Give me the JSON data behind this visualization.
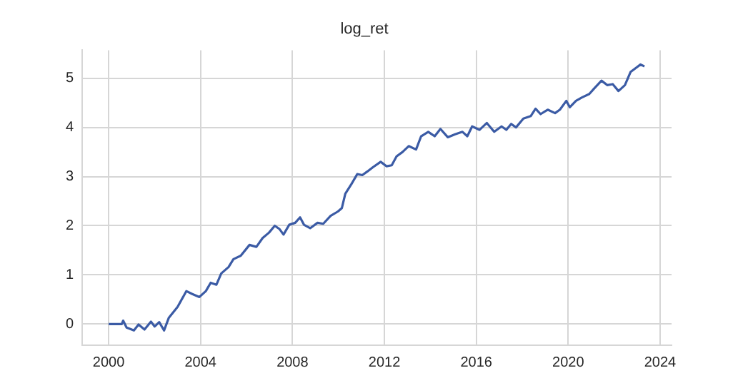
{
  "chart_data": {
    "type": "line",
    "title": "log_ret",
    "x": [
      2000.0,
      2000.57,
      2000.63,
      2000.78,
      2001.1,
      2001.3,
      2001.56,
      2001.84,
      2002.0,
      2002.2,
      2002.41,
      2002.62,
      2003.0,
      2003.38,
      2003.64,
      2003.95,
      2004.23,
      2004.44,
      2004.69,
      2004.9,
      2005.22,
      2005.43,
      2005.75,
      2006.13,
      2006.43,
      2006.7,
      2006.98,
      2007.23,
      2007.44,
      2007.61,
      2007.86,
      2008.12,
      2008.33,
      2008.5,
      2008.77,
      2009.09,
      2009.34,
      2009.66,
      2009.98,
      2010.15,
      2010.3,
      2010.57,
      2010.82,
      2011.04,
      2011.25,
      2011.5,
      2011.84,
      2012.09,
      2012.32,
      2012.53,
      2012.79,
      2013.06,
      2013.38,
      2013.6,
      2013.91,
      2014.19,
      2014.44,
      2014.76,
      2015.08,
      2015.4,
      2015.61,
      2015.82,
      2016.14,
      2016.46,
      2016.78,
      2017.1,
      2017.31,
      2017.52,
      2017.73,
      2018.05,
      2018.37,
      2018.58,
      2018.8,
      2019.11,
      2019.43,
      2019.64,
      2019.92,
      2020.07,
      2020.34,
      2020.6,
      2020.92,
      2021.13,
      2021.45,
      2021.7,
      2021.94,
      2022.19,
      2022.47,
      2022.72,
      2022.98,
      2023.15,
      2023.32
    ],
    "series": [
      {
        "color": "#3b5ba5",
        "values": [
          0,
          0,
          0.07,
          -0.07,
          -0.13,
          -0.01,
          -0.11,
          0.05,
          -0.05,
          0.04,
          -0.13,
          0.13,
          0.35,
          0.67,
          0.61,
          0.55,
          0.67,
          0.84,
          0.8,
          1.03,
          1.16,
          1.32,
          1.39,
          1.61,
          1.57,
          1.75,
          1.86,
          2.0,
          1.93,
          1.82,
          2.02,
          2.06,
          2.17,
          2.02,
          1.95,
          2.06,
          2.04,
          2.2,
          2.29,
          2.36,
          2.65,
          2.85,
          3.05,
          3.03,
          3.1,
          3.19,
          3.3,
          3.21,
          3.23,
          3.41,
          3.5,
          3.62,
          3.55,
          3.82,
          3.91,
          3.82,
          3.97,
          3.8,
          3.86,
          3.91,
          3.82,
          4.02,
          3.95,
          4.09,
          3.91,
          4.02,
          3.95,
          4.07,
          4.0,
          4.18,
          4.23,
          4.38,
          4.27,
          4.36,
          4.29,
          4.36,
          4.54,
          4.41,
          4.54,
          4.61,
          4.68,
          4.79,
          4.95,
          4.86,
          4.88,
          4.74,
          4.86,
          5.13,
          5.22,
          5.28,
          5.24
        ]
      }
    ],
    "xlim": [
      1998.85,
      2024.5
    ],
    "xticks": [
      2000,
      2004,
      2008,
      2012,
      2016,
      2020,
      2024
    ],
    "ylim": [
      -0.43,
      5.57
    ],
    "yticks": [
      0,
      1,
      2,
      3,
      4,
      5
    ],
    "grid": true,
    "legend": false,
    "marker": "none",
    "line_style": "solid"
  }
}
